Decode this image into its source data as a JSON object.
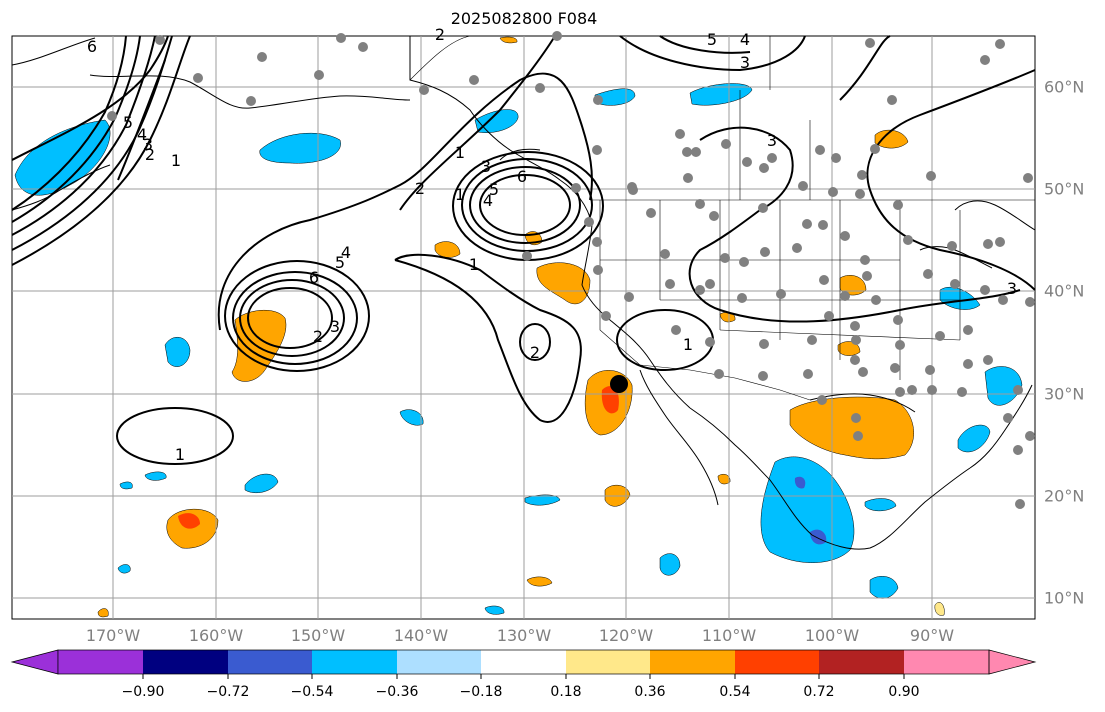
{
  "title": "2025082800 F084",
  "colors": {
    "land_border": "#000000",
    "grid": "#9e9e9e",
    "station": "#808080",
    "marker": "#000000"
  },
  "lon_labels": [
    "170°W",
    "160°W",
    "150°W",
    "140°W",
    "130°W",
    "120°W",
    "110°W",
    "100°W",
    "90°W"
  ],
  "lat_labels": [
    "60°N",
    "50°N",
    "40°N",
    "30°N",
    "20°N",
    "10°N"
  ],
  "colorbar": {
    "colors": [
      "#9b30d9",
      "#000080",
      "#3a5bd0",
      "#00bfff",
      "#addfff",
      "#ffffff",
      "#ffe88a",
      "#ffa500",
      "#ff4000",
      "#b22222",
      "#ff88b0"
    ],
    "ticks": [
      "−0.90",
      "−0.72",
      "−0.54",
      "−0.36",
      "−0.18",
      "0.18",
      "0.36",
      "0.54",
      "0.72",
      "0.90"
    ]
  },
  "contour_labels": [
    "6",
    "5",
    "4",
    "3",
    "2",
    "1",
    "6",
    "5",
    "4",
    "3",
    "2",
    "1",
    "6",
    "5",
    "4",
    "3",
    "2",
    "1",
    "2",
    "1",
    "5",
    "4",
    "3",
    "3",
    "2",
    "1",
    "3",
    "1"
  ]
}
